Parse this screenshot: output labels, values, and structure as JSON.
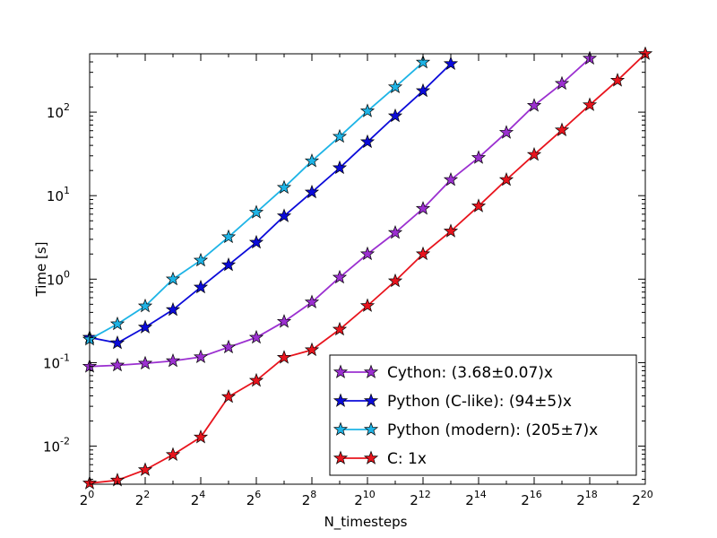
{
  "chart_data": {
    "type": "line",
    "title": "",
    "xlabel": "N_timesteps",
    "ylabel": "Time [s]",
    "x_scale": "log2",
    "y_scale": "log10",
    "xlim_exp": [
      0,
      20
    ],
    "ylim": [
      0.0035,
      500
    ],
    "x_ticks": [
      {
        "base": "2",
        "exp": "0",
        "value": 1
      },
      {
        "base": "2",
        "exp": "2",
        "value": 4
      },
      {
        "base": "2",
        "exp": "4",
        "value": 16
      },
      {
        "base": "2",
        "exp": "6",
        "value": 64
      },
      {
        "base": "2",
        "exp": "8",
        "value": 256
      },
      {
        "base": "2",
        "exp": "10",
        "value": 1024
      },
      {
        "base": "2",
        "exp": "12",
        "value": 4096
      },
      {
        "base": "2",
        "exp": "14",
        "value": 16384
      },
      {
        "base": "2",
        "exp": "16",
        "value": 65536
      },
      {
        "base": "2",
        "exp": "18",
        "value": 262144
      },
      {
        "base": "2",
        "exp": "20",
        "value": 1048576
      }
    ],
    "y_ticks": [
      {
        "mantissa": "10",
        "exp": "-2",
        "value": 0.01
      },
      {
        "mantissa": "10",
        "exp": "-1",
        "value": 0.1
      },
      {
        "mantissa": "10",
        "exp": "0",
        "value": 1
      },
      {
        "mantissa": "10",
        "exp": "1",
        "value": 10
      },
      {
        "mantissa": "10",
        "exp": "2",
        "value": 100
      }
    ],
    "grid": false,
    "legend_position": "lower-right",
    "series": [
      {
        "name": "Cython: (3.68±0.07)x",
        "color": "#9b30d0",
        "x": [
          1,
          2,
          4,
          8,
          16,
          32,
          64,
          128,
          256,
          512,
          1024,
          2048,
          4096,
          8192,
          16384,
          32768,
          65536,
          131072,
          262144
        ],
        "y": [
          0.09,
          0.093,
          0.098,
          0.105,
          0.117,
          0.153,
          0.2,
          0.31,
          0.53,
          1.05,
          2.0,
          3.6,
          7.0,
          15.5,
          28.5,
          57,
          120,
          220,
          440
        ]
      },
      {
        "name": "Python (C-like): (94±5)x",
        "color": "#0b0bd9",
        "x": [
          1,
          2,
          4,
          8,
          16,
          32,
          64,
          128,
          256,
          512,
          1024,
          2048,
          4096,
          8192
        ],
        "y": [
          0.2,
          0.172,
          0.265,
          0.43,
          0.8,
          1.48,
          2.75,
          5.7,
          11,
          21.5,
          44,
          90,
          180,
          380
        ]
      },
      {
        "name": "Python (modern): (205±7)x",
        "color": "#1eb4e6",
        "x": [
          1,
          2,
          4,
          8,
          16,
          32,
          64,
          128,
          256,
          512,
          1024,
          2048,
          4096
        ],
        "y": [
          0.19,
          0.29,
          0.475,
          1.0,
          1.68,
          3.2,
          6.3,
          12.5,
          26,
          51,
          103,
          200,
          395
        ]
      },
      {
        "name": "C: 1x",
        "color": "#e8141d",
        "x": [
          1,
          2,
          4,
          8,
          16,
          32,
          64,
          128,
          256,
          512,
          1024,
          2048,
          4096,
          8192,
          16384,
          32768,
          65536,
          131072,
          262144,
          524288,
          1048576
        ],
        "y": [
          0.0036,
          0.0039,
          0.0052,
          0.0079,
          0.0128,
          0.039,
          0.061,
          0.115,
          0.142,
          0.25,
          0.48,
          0.95,
          2.0,
          3.75,
          7.5,
          15.5,
          31,
          61,
          122,
          240,
          500
        ]
      }
    ]
  }
}
